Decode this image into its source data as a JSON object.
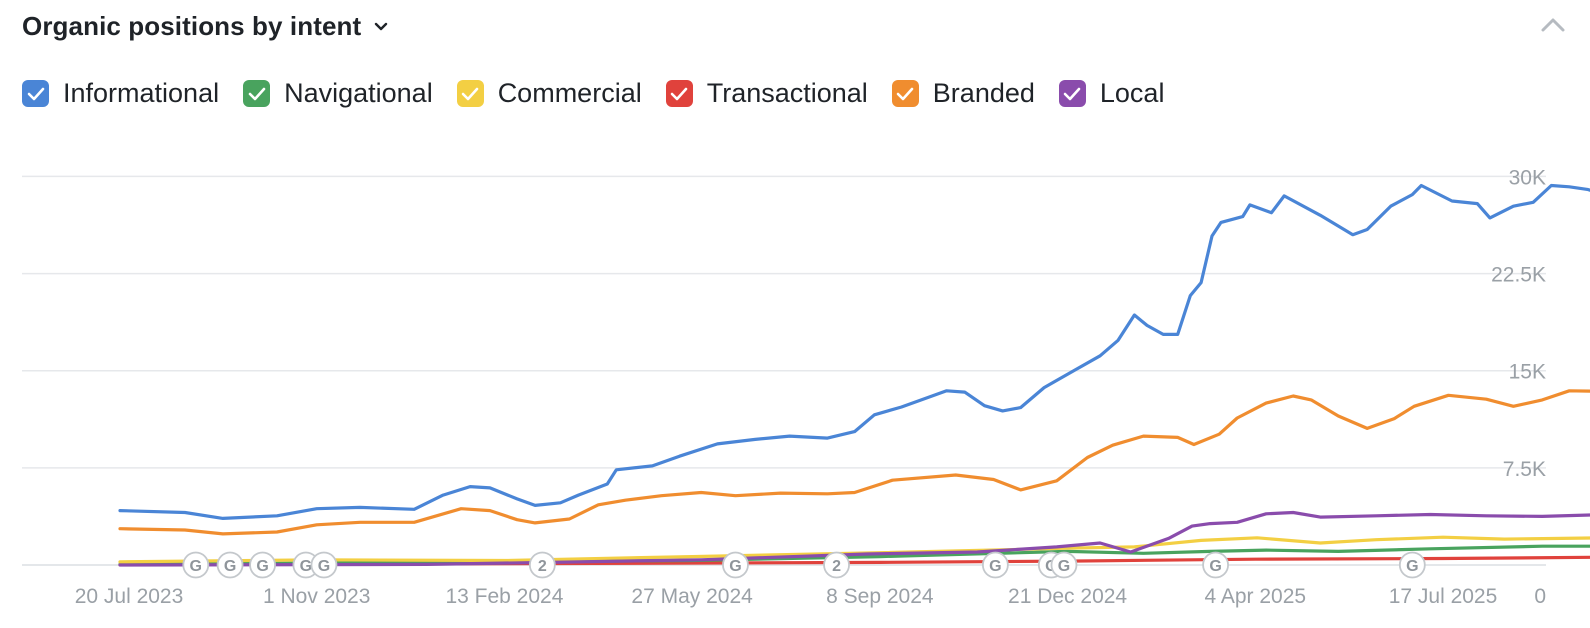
{
  "header": {
    "title": "Organic positions by intent"
  },
  "icons": {
    "dropdown": "chevron-down-icon",
    "collapse": "chevron-up-icon",
    "checkbox": "check-icon",
    "event": "google-update-marker-icon"
  },
  "legend": [
    {
      "label": "Informational",
      "color": "#4a85d6"
    },
    {
      "label": "Navigational",
      "color": "#49a35e"
    },
    {
      "label": "Commercial",
      "color": "#f3cf43"
    },
    {
      "label": "Transactional",
      "color": "#e0423c"
    },
    {
      "label": "Branded",
      "color": "#f08d2f"
    },
    {
      "label": "Local",
      "color": "#8a4cac"
    }
  ],
  "chart_data": {
    "type": "line",
    "y_ticks": [
      "30K",
      "22.5K",
      "15K",
      "7.5K",
      "0"
    ],
    "ylim": [
      0,
      31500
    ],
    "x_ticks": [
      "20 Jul 2023",
      "1 Nov 2023",
      "13 Feb 2024",
      "27 May 2024",
      "8 Sep 2024",
      "21 Dec 2024",
      "4 Apr 2025",
      "17 Jul 2025"
    ],
    "x_tick_dates": [
      "2023-07-20",
      "2023-11-01",
      "2024-02-13",
      "2024-05-27",
      "2024-09-08",
      "2024-12-21",
      "2025-04-04",
      "2025-07-17"
    ],
    "grid": true,
    "legend_position": "top-left",
    "series": [
      {
        "name": "Informational",
        "color": "#4a85d6",
        "points": [
          [
            "2023-07-15",
            4200
          ],
          [
            "2023-08-20",
            4050
          ],
          [
            "2023-09-10",
            3600
          ],
          [
            "2023-10-10",
            3800
          ],
          [
            "2023-11-01",
            4350
          ],
          [
            "2023-11-25",
            4450
          ],
          [
            "2023-12-25",
            4300
          ],
          [
            "2024-01-10",
            5400
          ],
          [
            "2024-01-25",
            6050
          ],
          [
            "2024-02-05",
            5950
          ],
          [
            "2024-02-20",
            5100
          ],
          [
            "2024-03-01",
            4600
          ],
          [
            "2024-03-15",
            4800
          ],
          [
            "2024-03-25",
            5400
          ],
          [
            "2024-04-10",
            6250
          ],
          [
            "2024-04-15",
            7350
          ],
          [
            "2024-05-05",
            7650
          ],
          [
            "2024-05-20",
            8400
          ],
          [
            "2024-06-10",
            9350
          ],
          [
            "2024-07-01",
            9700
          ],
          [
            "2024-07-20",
            9950
          ],
          [
            "2024-08-10",
            9800
          ],
          [
            "2024-08-25",
            10300
          ],
          [
            "2024-09-05",
            11600
          ],
          [
            "2024-09-20",
            12200
          ],
          [
            "2024-10-05",
            12950
          ],
          [
            "2024-10-15",
            13450
          ],
          [
            "2024-10-25",
            13350
          ],
          [
            "2024-11-05",
            12300
          ],
          [
            "2024-11-15",
            11900
          ],
          [
            "2024-11-25",
            12150
          ],
          [
            "2024-12-08",
            13700
          ],
          [
            "2024-12-25",
            15050
          ],
          [
            "2025-01-08",
            16150
          ],
          [
            "2025-01-18",
            17350
          ],
          [
            "2025-01-27",
            19300
          ],
          [
            "2025-02-03",
            18500
          ],
          [
            "2025-02-12",
            17800
          ],
          [
            "2025-02-20",
            17800
          ],
          [
            "2025-02-27",
            20800
          ],
          [
            "2025-03-05",
            21800
          ],
          [
            "2025-03-11",
            25400
          ],
          [
            "2025-03-16",
            26450
          ],
          [
            "2025-03-28",
            26900
          ],
          [
            "2025-04-01",
            27800
          ],
          [
            "2025-04-13",
            27200
          ],
          [
            "2025-04-20",
            28500
          ],
          [
            "2025-05-10",
            27000
          ],
          [
            "2025-05-28",
            25500
          ],
          [
            "2025-06-05",
            25900
          ],
          [
            "2025-06-18",
            27700
          ],
          [
            "2025-06-30",
            28600
          ],
          [
            "2025-07-05",
            29300
          ],
          [
            "2025-07-22",
            28100
          ],
          [
            "2025-08-05",
            27900
          ],
          [
            "2025-08-12",
            26800
          ],
          [
            "2025-08-25",
            27700
          ],
          [
            "2025-09-05",
            28000
          ],
          [
            "2025-09-15",
            29300
          ],
          [
            "2025-09-25",
            29200
          ],
          [
            "2025-10-05",
            29000
          ],
          [
            "2025-10-15",
            28600
          ]
        ]
      },
      {
        "name": "Branded",
        "color": "#f08d2f",
        "points": [
          [
            "2023-07-15",
            2800
          ],
          [
            "2023-08-20",
            2700
          ],
          [
            "2023-09-10",
            2400
          ],
          [
            "2023-10-10",
            2550
          ],
          [
            "2023-11-01",
            3100
          ],
          [
            "2023-11-25",
            3300
          ],
          [
            "2023-12-25",
            3300
          ],
          [
            "2024-01-20",
            4350
          ],
          [
            "2024-02-05",
            4200
          ],
          [
            "2024-02-20",
            3500
          ],
          [
            "2024-03-01",
            3250
          ],
          [
            "2024-03-20",
            3550
          ],
          [
            "2024-04-05",
            4650
          ],
          [
            "2024-04-20",
            5000
          ],
          [
            "2024-05-10",
            5350
          ],
          [
            "2024-06-01",
            5600
          ],
          [
            "2024-06-20",
            5350
          ],
          [
            "2024-07-15",
            5550
          ],
          [
            "2024-08-10",
            5500
          ],
          [
            "2024-08-25",
            5600
          ],
          [
            "2024-09-15",
            6550
          ],
          [
            "2024-10-20",
            6950
          ],
          [
            "2024-11-10",
            6600
          ],
          [
            "2024-11-25",
            5800
          ],
          [
            "2024-12-15",
            6500
          ],
          [
            "2025-01-01",
            8300
          ],
          [
            "2025-01-15",
            9250
          ],
          [
            "2025-02-01",
            9950
          ],
          [
            "2025-02-20",
            9850
          ],
          [
            "2025-03-01",
            9300
          ],
          [
            "2025-03-15",
            10100
          ],
          [
            "2025-03-25",
            11350
          ],
          [
            "2025-04-10",
            12500
          ],
          [
            "2025-04-25",
            13050
          ],
          [
            "2025-05-05",
            12750
          ],
          [
            "2025-05-20",
            11500
          ],
          [
            "2025-06-05",
            10550
          ],
          [
            "2025-06-20",
            11300
          ],
          [
            "2025-07-01",
            12250
          ],
          [
            "2025-07-20",
            13100
          ],
          [
            "2025-08-10",
            12800
          ],
          [
            "2025-08-25",
            12250
          ],
          [
            "2025-09-10",
            12750
          ],
          [
            "2025-09-25",
            13450
          ],
          [
            "2025-10-15",
            13400
          ]
        ]
      },
      {
        "name": "Local",
        "color": "#8a4cac",
        "points": [
          [
            "2023-07-15",
            0
          ],
          [
            "2024-01-01",
            50
          ],
          [
            "2024-06-01",
            400
          ],
          [
            "2024-09-01",
            850
          ],
          [
            "2024-11-01",
            1000
          ],
          [
            "2024-12-15",
            1400
          ],
          [
            "2025-01-08",
            1700
          ],
          [
            "2025-01-25",
            1000
          ],
          [
            "2025-02-15",
            2050
          ],
          [
            "2025-02-28",
            3000
          ],
          [
            "2025-03-10",
            3200
          ],
          [
            "2025-03-25",
            3300
          ],
          [
            "2025-04-10",
            3950
          ],
          [
            "2025-04-25",
            4050
          ],
          [
            "2025-05-10",
            3700
          ],
          [
            "2025-06-10",
            3800
          ],
          [
            "2025-07-10",
            3900
          ],
          [
            "2025-08-10",
            3800
          ],
          [
            "2025-09-10",
            3750
          ],
          [
            "2025-10-15",
            3900
          ]
        ]
      },
      {
        "name": "Commercial",
        "color": "#f3cf43",
        "points": [
          [
            "2023-07-15",
            250
          ],
          [
            "2023-11-01",
            400
          ],
          [
            "2024-02-13",
            350
          ],
          [
            "2024-05-27",
            650
          ],
          [
            "2024-09-08",
            950
          ],
          [
            "2024-12-21",
            1300
          ],
          [
            "2025-01-27",
            1400
          ],
          [
            "2025-03-05",
            1900
          ],
          [
            "2025-04-05",
            2100
          ],
          [
            "2025-05-10",
            1700
          ],
          [
            "2025-06-10",
            1950
          ],
          [
            "2025-07-17",
            2150
          ],
          [
            "2025-08-20",
            2000
          ],
          [
            "2025-10-15",
            2100
          ]
        ]
      },
      {
        "name": "Navigational",
        "color": "#49a35e",
        "points": [
          [
            "2023-07-15",
            50
          ],
          [
            "2023-11-01",
            150
          ],
          [
            "2024-05-27",
            350
          ],
          [
            "2024-09-08",
            650
          ],
          [
            "2024-12-21",
            1050
          ],
          [
            "2025-02-01",
            900
          ],
          [
            "2025-03-10",
            1050
          ],
          [
            "2025-04-10",
            1150
          ],
          [
            "2025-05-20",
            1050
          ],
          [
            "2025-07-10",
            1250
          ],
          [
            "2025-09-10",
            1450
          ],
          [
            "2025-10-15",
            1450
          ]
        ]
      },
      {
        "name": "Transactional",
        "color": "#e0423c",
        "points": [
          [
            "2023-07-15",
            20
          ],
          [
            "2024-02-13",
            100
          ],
          [
            "2024-09-08",
            200
          ],
          [
            "2024-12-21",
            300
          ],
          [
            "2025-04-04",
            450
          ],
          [
            "2025-07-17",
            500
          ],
          [
            "2025-10-15",
            600
          ]
        ]
      }
    ],
    "event_markers": [
      {
        "date": "2023-08-26",
        "label": "G"
      },
      {
        "date": "2023-09-14",
        "label": "G"
      },
      {
        "date": "2023-10-02",
        "label": "G"
      },
      {
        "date": "2023-10-26",
        "label": "G"
      },
      {
        "date": "2023-11-05",
        "label": "G"
      },
      {
        "date": "2024-03-05",
        "label": "2"
      },
      {
        "date": "2024-06-20",
        "label": "G"
      },
      {
        "date": "2024-08-15",
        "label": "2"
      },
      {
        "date": "2024-11-11",
        "label": "G"
      },
      {
        "date": "2024-12-12",
        "label": "G"
      },
      {
        "date": "2024-12-19",
        "label": "G"
      },
      {
        "date": "2025-03-13",
        "label": "G"
      },
      {
        "date": "2025-06-30",
        "label": "G"
      }
    ]
  }
}
